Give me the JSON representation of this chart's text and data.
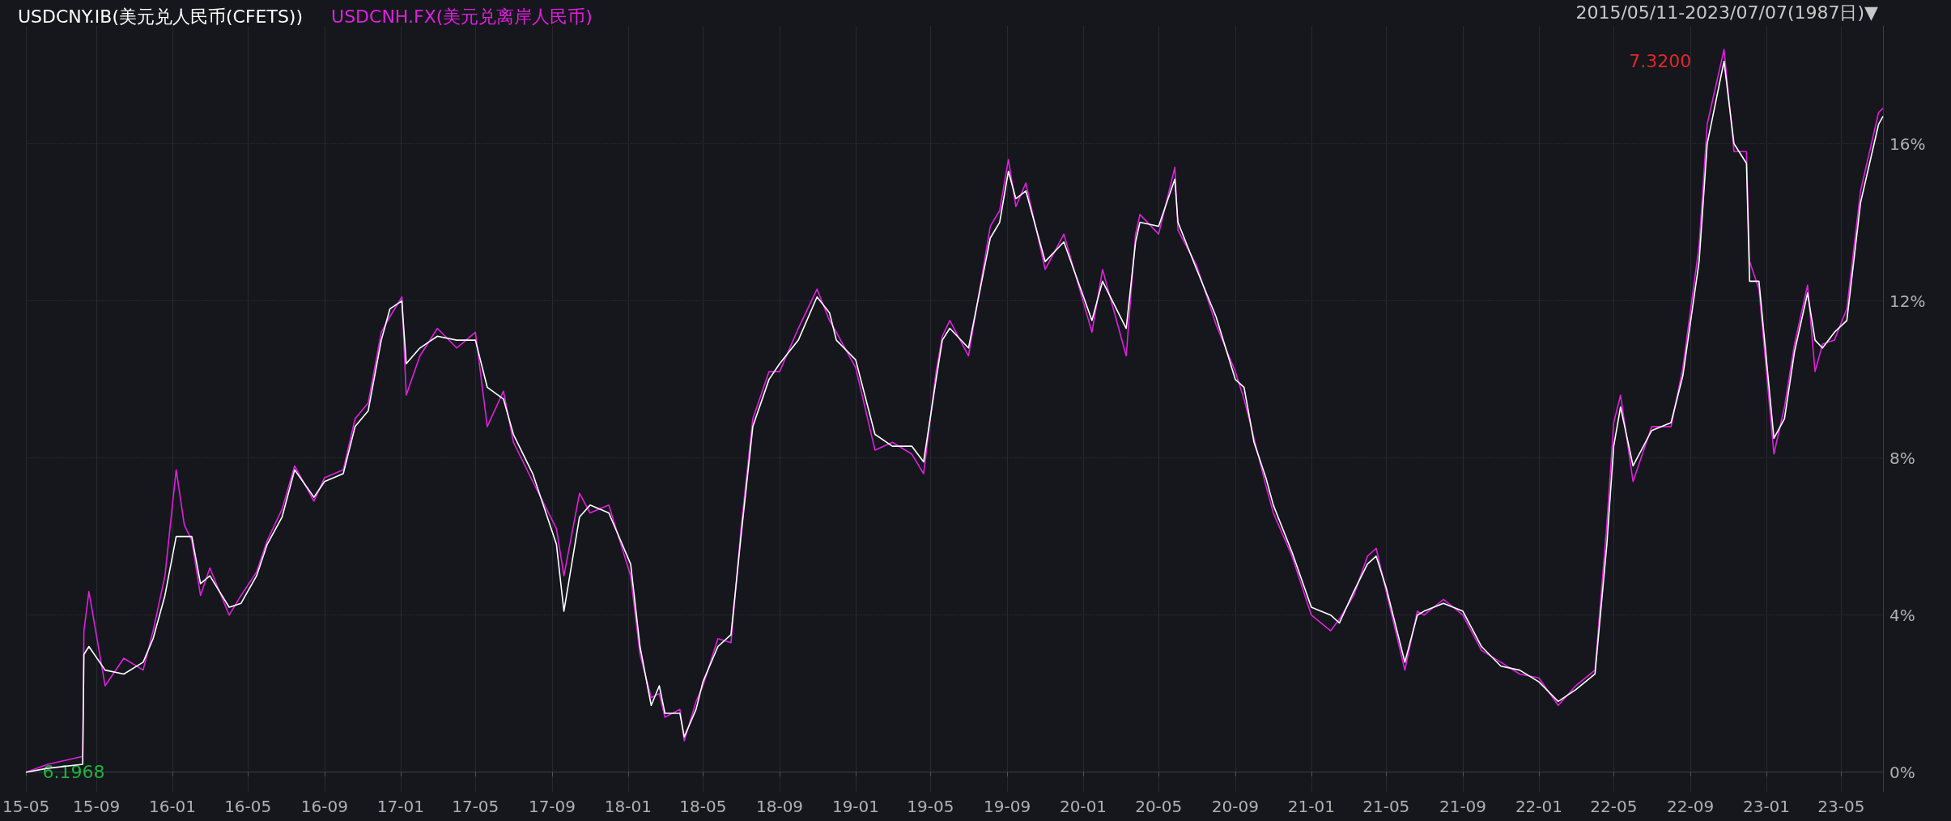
{
  "chart_data": {
    "type": "line",
    "x": [
      "2015-05-11",
      "2015-06-15",
      "2015-08-10",
      "2015-08-12",
      "2015-08-20",
      "2015-09-15",
      "2015-10-15",
      "2015-11-15",
      "2015-12-01",
      "2015-12-20",
      "2016-01-07",
      "2016-01-20",
      "2016-02-01",
      "2016-02-15",
      "2016-03-01",
      "2016-04-01",
      "2016-04-20",
      "2016-05-15",
      "2016-06-01",
      "2016-06-25",
      "2016-07-15",
      "2016-08-15",
      "2016-09-01",
      "2016-10-01",
      "2016-10-20",
      "2016-11-10",
      "2016-12-01",
      "2016-12-15",
      "2017-01-03",
      "2017-01-10",
      "2017-02-01",
      "2017-03-01",
      "2017-04-01",
      "2017-05-01",
      "2017-05-20",
      "2017-06-15",
      "2017-07-01",
      "2017-08-01",
      "2017-09-08",
      "2017-09-20",
      "2017-10-15",
      "2017-11-01",
      "2017-12-01",
      "2018-01-05",
      "2018-01-20",
      "2018-02-07",
      "2018-02-20",
      "2018-03-01",
      "2018-03-25",
      "2018-04-01",
      "2018-04-20",
      "2018-05-01",
      "2018-05-25",
      "2018-06-15",
      "2018-07-01",
      "2018-07-20",
      "2018-08-15",
      "2018-09-01",
      "2018-10-01",
      "2018-10-31",
      "2018-11-20",
      "2018-12-01",
      "2019-01-01",
      "2019-02-01",
      "2019-03-01",
      "2019-04-01",
      "2019-04-20",
      "2019-05-10",
      "2019-05-20",
      "2019-06-01",
      "2019-07-01",
      "2019-08-05",
      "2019-08-20",
      "2019-09-03",
      "2019-09-15",
      "2019-10-01",
      "2019-11-01",
      "2019-12-01",
      "2020-01-15",
      "2020-02-01",
      "2020-03-10",
      "2020-03-25",
      "2020-04-01",
      "2020-05-01",
      "2020-05-27",
      "2020-06-01",
      "2020-07-01",
      "2020-08-01",
      "2020-09-01",
      "2020-09-15",
      "2020-10-01",
      "2020-10-20",
      "2020-11-01",
      "2020-12-01",
      "2021-01-01",
      "2021-02-01",
      "2021-02-15",
      "2021-03-10",
      "2021-04-01",
      "2021-04-15",
      "2021-05-01",
      "2021-05-31",
      "2021-06-20",
      "2021-07-01",
      "2021-08-01",
      "2021-09-01",
      "2021-10-01",
      "2021-11-01",
      "2021-12-01",
      "2022-01-01",
      "2022-02-01",
      "2022-03-01",
      "2022-04-01",
      "2022-04-20",
      "2022-05-01",
      "2022-05-12",
      "2022-06-01",
      "2022-07-01",
      "2022-08-01",
      "2022-08-20",
      "2022-09-15",
      "2022-09-28",
      "2022-10-25",
      "2022-11-10",
      "2022-11-30",
      "2022-12-05",
      "2022-12-20",
      "2023-01-13",
      "2023-01-30",
      "2023-02-15",
      "2023-03-08",
      "2023-03-20",
      "2023-04-01",
      "2023-04-20",
      "2023-05-10",
      "2023-06-01",
      "2023-06-30",
      "2023-07-07"
    ],
    "series": [
      {
        "name": "USDCNY.IB(美元兑人民币(CFETS))",
        "color": "#ffffff",
        "values": [
          0,
          0.1,
          0.2,
          3.0,
          3.2,
          2.6,
          2.5,
          2.8,
          3.4,
          4.5,
          6.0,
          6.0,
          6.0,
          4.8,
          5.0,
          4.2,
          4.3,
          5.0,
          5.8,
          6.5,
          7.7,
          7.0,
          7.4,
          7.6,
          8.8,
          9.2,
          11.0,
          11.8,
          12.0,
          10.4,
          10.8,
          11.1,
          11.0,
          11.0,
          9.8,
          9.5,
          8.6,
          7.6,
          5.8,
          4.1,
          6.5,
          6.8,
          6.6,
          5.3,
          3.2,
          1.7,
          2.2,
          1.5,
          1.5,
          0.9,
          1.6,
          2.3,
          3.2,
          3.5,
          6.0,
          8.8,
          10.0,
          10.4,
          11.0,
          12.1,
          11.7,
          11.0,
          10.5,
          8.6,
          8.3,
          8.3,
          7.9,
          10.0,
          11.0,
          11.3,
          10.8,
          13.6,
          14.0,
          15.3,
          14.6,
          14.8,
          13.0,
          13.5,
          11.5,
          12.5,
          11.3,
          13.5,
          14.0,
          13.9,
          15.1,
          14.0,
          12.8,
          11.6,
          10.0,
          9.8,
          8.4,
          7.5,
          6.8,
          5.6,
          4.2,
          4.0,
          3.8,
          4.6,
          5.3,
          5.5,
          4.7,
          2.8,
          4.0,
          4.1,
          4.3,
          4.1,
          3.2,
          2.7,
          2.6,
          2.3,
          1.8,
          2.1,
          2.5,
          5.8,
          8.3,
          9.3,
          7.8,
          8.7,
          8.9,
          10.1,
          13.0,
          16.0,
          18.1,
          16.0,
          15.5,
          12.5,
          12.5,
          8.5,
          9.0,
          10.7,
          12.2,
          11.0,
          10.8,
          11.2,
          11.5,
          14.5,
          16.5,
          16.7
        ]
      },
      {
        "name": "USDCNH.FX(美元兑离岸人民币)",
        "color": "#e020e0",
        "values": [
          0,
          0.2,
          0.4,
          3.6,
          4.6,
          2.2,
          2.9,
          2.6,
          3.6,
          5.0,
          7.7,
          6.3,
          5.9,
          4.5,
          5.2,
          4.0,
          4.5,
          5.1,
          5.9,
          6.7,
          7.8,
          6.9,
          7.5,
          7.7,
          9.0,
          9.4,
          11.2,
          11.6,
          12.1,
          9.6,
          10.6,
          11.3,
          10.8,
          11.2,
          8.8,
          9.7,
          8.4,
          7.4,
          6.2,
          5.0,
          7.1,
          6.6,
          6.8,
          5.0,
          3.0,
          1.9,
          2.0,
          1.4,
          1.6,
          0.8,
          1.8,
          2.2,
          3.4,
          3.3,
          6.2,
          9.0,
          10.2,
          10.2,
          11.3,
          12.3,
          11.5,
          11.2,
          10.3,
          8.2,
          8.4,
          8.1,
          7.6,
          10.2,
          11.1,
          11.5,
          10.6,
          13.9,
          14.3,
          15.6,
          14.4,
          15.0,
          12.8,
          13.7,
          11.2,
          12.8,
          10.6,
          13.7,
          14.2,
          13.7,
          15.4,
          13.8,
          12.9,
          11.4,
          10.2,
          9.5,
          8.5,
          7.3,
          6.6,
          5.5,
          4.0,
          3.6,
          3.9,
          4.5,
          5.5,
          5.7,
          4.6,
          2.6,
          4.1,
          4.0,
          4.4,
          4.0,
          3.1,
          2.8,
          2.5,
          2.4,
          1.7,
          2.2,
          2.6,
          6.3,
          8.9,
          9.6,
          7.4,
          8.8,
          8.8,
          10.3,
          13.4,
          16.5,
          18.4,
          15.8,
          15.8,
          13.0,
          12.3,
          8.1,
          9.3,
          10.9,
          12.4,
          10.2,
          10.9,
          11.0,
          11.8,
          14.8,
          16.8,
          16.9
        ]
      }
    ],
    "ylim": [
      -0.5,
      19
    ],
    "yticks": [
      {
        "value": 0,
        "label": "0%"
      },
      {
        "value": 4,
        "label": "4%"
      },
      {
        "value": 8,
        "label": "8%"
      },
      {
        "value": 12,
        "label": "12%"
      },
      {
        "value": 16,
        "label": "16%"
      }
    ],
    "xlim": [
      "2015-05-11",
      "2023-07-07"
    ],
    "xticks": [
      {
        "value": "2015-05-11",
        "label": "15-05"
      },
      {
        "value": "2015-09-01",
        "label": "15-09"
      },
      {
        "value": "2016-01-01",
        "label": "16-01"
      },
      {
        "value": "2016-05-01",
        "label": "16-05"
      },
      {
        "value": "2016-09-01",
        "label": "16-09"
      },
      {
        "value": "2017-01-01",
        "label": "17-01"
      },
      {
        "value": "2017-05-01",
        "label": "17-05"
      },
      {
        "value": "2017-09-01",
        "label": "17-09"
      },
      {
        "value": "2018-01-01",
        "label": "18-01"
      },
      {
        "value": "2018-05-01",
        "label": "18-05"
      },
      {
        "value": "2018-09-01",
        "label": "18-09"
      },
      {
        "value": "2019-01-01",
        "label": "19-01"
      },
      {
        "value": "2019-05-01",
        "label": "19-05"
      },
      {
        "value": "2019-09-01",
        "label": "19-09"
      },
      {
        "value": "2020-01-01",
        "label": "20-01"
      },
      {
        "value": "2020-05-01",
        "label": "20-05"
      },
      {
        "value": "2020-09-01",
        "label": "20-09"
      },
      {
        "value": "2021-01-01",
        "label": "21-01"
      },
      {
        "value": "2021-05-01",
        "label": "21-05"
      },
      {
        "value": "2021-09-01",
        "label": "21-09"
      },
      {
        "value": "2022-01-01",
        "label": "22-01"
      },
      {
        "value": "2022-05-01",
        "label": "22-05"
      },
      {
        "value": "2022-09-01",
        "label": "22-09"
      },
      {
        "value": "2023-01-01",
        "label": "23-01"
      },
      {
        "value": "2023-05-01",
        "label": "23-05"
      }
    ],
    "annotations": [
      "2015/05/11-2023/07/07(1987日)▼",
      {
        "text": "7.3200",
        "x": "2022-10-25",
        "y": 18.1
      },
      {
        "text": "6.1968",
        "x": "2015-05-11",
        "y": 0
      }
    ],
    "grid": true,
    "legend": "top left",
    "marker": "none",
    "line_style": "solid"
  }
}
